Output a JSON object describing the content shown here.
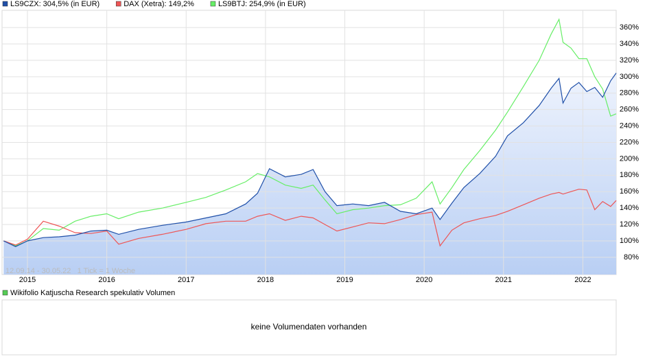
{
  "chart_data": {
    "type": "line",
    "x": [
      2014.7,
      2014.85,
      2015.0,
      2015.2,
      2015.4,
      2015.6,
      2015.8,
      2016.0,
      2016.15,
      2016.4,
      2016.7,
      2017.0,
      2017.25,
      2017.5,
      2017.75,
      2017.9,
      2018.05,
      2018.25,
      2018.45,
      2018.6,
      2018.75,
      2018.9,
      2019.1,
      2019.3,
      2019.5,
      2019.7,
      2019.9,
      2020.1,
      2020.2,
      2020.35,
      2020.5,
      2020.7,
      2020.9,
      2021.05,
      2021.25,
      2021.45,
      2021.6,
      2021.7,
      2021.75,
      2021.85,
      2021.95,
      2022.05,
      2022.15,
      2022.25,
      2022.35,
      2022.42
    ],
    "series": [
      {
        "name": "LS9CZX: 304,5% (in EUR)",
        "color": "#1f4fa8",
        "fill": true,
        "values": [
          100,
          93,
          100,
          104,
          105,
          107,
          112,
          113,
          108,
          114,
          119,
          123,
          128,
          133,
          145,
          158,
          188,
          178,
          181,
          187,
          160,
          143,
          145,
          143,
          147,
          136,
          133,
          140,
          126,
          146,
          165,
          182,
          203,
          228,
          244,
          265,
          286,
          298,
          268,
          286,
          293,
          282,
          287,
          275,
          295,
          304.5
        ]
      },
      {
        "name": "DAX (Xetra): 149,2%",
        "color": "#ee5555",
        "fill": false,
        "values": [
          100,
          95,
          102,
          124,
          118,
          110,
          109,
          112,
          96,
          103,
          108,
          114,
          121,
          124,
          124,
          130,
          133,
          125,
          130,
          128,
          120,
          112,
          117,
          122,
          121,
          126,
          132,
          135,
          94,
          113,
          122,
          127,
          131,
          136,
          144,
          152,
          157,
          159,
          157,
          160,
          163,
          162,
          138,
          148,
          142,
          149.2
        ]
      },
      {
        "name": "LS9BTJ: 254,9% (in EUR)",
        "color": "#66ee66",
        "fill": false,
        "values": [
          100,
          94,
          100,
          115,
          113,
          124,
          130,
          133,
          127,
          135,
          140,
          147,
          153,
          162,
          172,
          182,
          178,
          168,
          164,
          168,
          150,
          133,
          138,
          140,
          143,
          144,
          152,
          172,
          145,
          165,
          187,
          210,
          235,
          257,
          288,
          320,
          352,
          370,
          342,
          335,
          322,
          322,
          300,
          285,
          252,
          254.9
        ]
      }
    ],
    "xlim": [
      2014.68,
      2022.42
    ],
    "xticks": [
      2015,
      2016,
      2017,
      2018,
      2019,
      2020,
      2021,
      2022
    ],
    "ylim": [
      59,
      381
    ],
    "yticks": [
      {
        "value": 80,
        "label": "80%"
      },
      {
        "value": 100,
        "label": "100%"
      },
      {
        "value": 120,
        "label": "120%"
      },
      {
        "value": 140,
        "label": "140%"
      },
      {
        "value": 160,
        "label": "160%"
      },
      {
        "value": 180,
        "label": "180%"
      },
      {
        "value": 200,
        "label": "200%"
      },
      {
        "value": 220,
        "label": "220%"
      },
      {
        "value": 240,
        "label": "240%"
      },
      {
        "value": 260,
        "label": "260%"
      },
      {
        "value": 280,
        "label": "280%"
      },
      {
        "value": 300,
        "label": "300%"
      },
      {
        "value": 320,
        "label": "320%"
      },
      {
        "value": 340,
        "label": "340%"
      },
      {
        "value": 360,
        "label": "360%"
      }
    ],
    "grid": true,
    "annotation": "12.09.14 - 30.05.22   1 Tick = 1 Woche",
    "volume_panel": {
      "legend": "Wikifolio Katjuscha Research spekulativ Volumen",
      "color": "#55cc55",
      "message": "keine Volumendaten vorhanden"
    }
  }
}
